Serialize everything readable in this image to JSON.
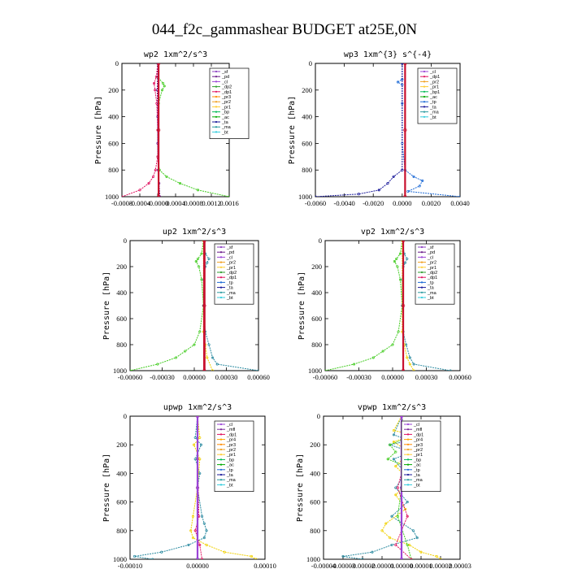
{
  "figure": {
    "title": "044_f2c_gammashear  BUDGET at25E,0N"
  },
  "colors": {
    "sf": "#8b3fc0",
    "pd": "#6a1a8a",
    "cl": "#9b44d6",
    "mfl": "#7a2a9a",
    "dp1": "#e0115f",
    "dp2": "#2e9e2e",
    "pr1": "#ffcc33",
    "pr2": "#f0a020",
    "pr3": "#ff8c00",
    "pr4": "#ffa500",
    "bp": "#00bb55",
    "ac": "#00aa00",
    "tp": "#1e6bd6",
    "ta": "#1a1a9a",
    "ma": "#2a9aa0",
    "bt": "#33ccdd",
    "red": "#c8102e",
    "green": "#44cc22",
    "teal": "#2a8aa0",
    "yellow": "#f0d000"
  },
  "chart_data": [
    {
      "type": "line",
      "title": "wp2  1xm^2/s^3",
      "ylabel": "Pressure [hPa]",
      "xlim": [
        -0.0008,
        0.0016
      ],
      "ylim": [
        1000,
        0
      ],
      "xticks": [
        "-0.0008",
        "-0.0004",
        "-0.0000",
        "0.0004",
        "0.0008",
        "0.0012",
        "0.0016"
      ],
      "yticks": [
        "0",
        "200",
        "400",
        "600",
        "800",
        "1000"
      ],
      "legend": [
        "_sf",
        "_pd",
        "_cl",
        "_dp2",
        "_dp1",
        "_pr3",
        "_pr2",
        "_pr1",
        "_bp",
        "_ac",
        "_ta",
        "_ma",
        "_bt"
      ],
      "legend_colors": [
        "sf",
        "pd",
        "cl",
        "dp2",
        "dp1",
        "pr3",
        "pr2",
        "pr1",
        "bp",
        "ac",
        "ta",
        "ma",
        "bt"
      ],
      "series": [
        {
          "color": "green",
          "p": [
            0,
            100,
            150,
            170,
            200,
            300,
            500,
            700,
            800,
            850,
            900,
            950,
            1000
          ],
          "v": [
            0,
            0,
            0.00012,
            0.00015,
            0.0001,
            2e-05,
            0,
            0,
            4e-05,
            0.0002,
            0.0005,
            0.0009,
            0.0016
          ]
        },
        {
          "color": "dp1",
          "p": [
            0,
            100,
            150,
            200,
            300,
            500,
            700,
            800,
            850,
            900,
            950,
            1000
          ],
          "v": [
            0,
            -3e-05,
            -8e-05,
            -6e-05,
            -2e-05,
            0,
            0,
            -5e-05,
            -0.0001,
            -0.0002,
            -0.0004,
            -0.0008
          ]
        },
        {
          "color": "pd",
          "p": [
            0,
            200,
            400,
            600,
            800,
            900,
            1000
          ],
          "v": [
            0,
            -1e-05,
            0,
            0,
            1e-05,
            3e-05,
            5e-05
          ]
        },
        {
          "color": "red",
          "p": [
            0,
            500,
            1000
          ],
          "v": [
            2e-05,
            2e-05,
            2e-05
          ],
          "width": 2.2
        }
      ]
    },
    {
      "type": "line",
      "title": "wp3  1xm^{3} s^{-4}",
      "ylabel": "Pressure [hPa]",
      "xlim": [
        -0.006,
        0.004
      ],
      "ylim": [
        1000,
        0
      ],
      "xticks": [
        "-0.0060",
        "-0.0040",
        "-0.0020",
        "0.0000",
        "0.0020",
        "0.0040"
      ],
      "yticks": [
        "0",
        "200",
        "400",
        "600",
        "800",
        "1000"
      ],
      "legend": [
        "_cl",
        "_dp1",
        "_pr2",
        "_pr1",
        "_bp1",
        "_ac",
        "_tp",
        "_ta",
        "_ma",
        "_bt"
      ],
      "legend_colors": [
        "cl",
        "dp1",
        "pr2",
        "pr1",
        "bp",
        "ac",
        "tp",
        "ta",
        "ma",
        "bt"
      ],
      "series": [
        {
          "color": "tp",
          "p": [
            0,
            120,
            140,
            160,
            300,
            600,
            800,
            850,
            880,
            920,
            960,
            1000
          ],
          "v": [
            0,
            0,
            -0.0003,
            0,
            0,
            0,
            0.0002,
            0.0008,
            0.0014,
            0.0012,
            0.0004,
            0.004
          ]
        },
        {
          "color": "ta",
          "p": [
            0,
            800,
            850,
            900,
            950,
            980,
            1000
          ],
          "v": [
            0,
            0,
            -0.0006,
            -0.001,
            -0.0016,
            -0.003,
            -0.006
          ]
        },
        {
          "color": "red",
          "p": [
            0,
            500,
            1000
          ],
          "v": [
            0.0002,
            0.0002,
            0.0002
          ],
          "width": 2.2
        }
      ]
    },
    {
      "type": "line",
      "title": "up2  1xm^2/s^3",
      "ylabel": "Pressure [hPa]",
      "xlim": [
        -0.0008,
        0.0006
      ],
      "ylim": [
        1000,
        0
      ],
      "xticks": [
        "-0.00060",
        "-0.00030",
        "0.00000",
        "0.00030",
        "0.00060"
      ],
      "yticks": [
        "0",
        "200",
        "400",
        "600",
        "800",
        "1000"
      ],
      "legend": [
        "_sf",
        "_pd",
        "_cl",
        "_pr2",
        "_pr1",
        "_dp2",
        "_dp1",
        "_tp",
        "_ta",
        "_ma",
        "_bt"
      ],
      "legend_colors": [
        "sf",
        "pd",
        "cl",
        "pr2",
        "pr1",
        "dp2",
        "dp1",
        "tp",
        "ta",
        "ma",
        "bt"
      ],
      "series": [
        {
          "color": "green",
          "p": [
            0,
            100,
            140,
            160,
            200,
            300,
            500,
            700,
            800,
            850,
            900,
            950,
            1000
          ],
          "v": [
            0,
            -2e-05,
            -6e-05,
            -8e-05,
            -5e-05,
            -2e-05,
            0,
            -4e-05,
            -0.0001,
            -0.0002,
            -0.0003,
            -0.0005,
            -0.0008
          ]
        },
        {
          "color": "teal",
          "p": [
            0,
            100,
            140,
            170,
            200,
            300,
            500,
            700,
            800,
            900,
            950,
            1000
          ],
          "v": [
            0,
            2e-05,
            6e-05,
            4e-05,
            2e-05,
            0,
            0,
            2e-05,
            6e-05,
            0.0001,
            0.00015,
            0.0006
          ]
        },
        {
          "color": "yellow",
          "p": [
            0,
            700,
            800,
            900,
            1000
          ],
          "v": [
            0,
            0,
            2e-05,
            4e-05,
            0.0001
          ]
        },
        {
          "color": "red",
          "p": [
            0,
            500,
            1000
          ],
          "v": [
            1e-05,
            1e-05,
            1e-05
          ],
          "width": 2.8
        }
      ]
    },
    {
      "type": "line",
      "title": "vp2  1xm^2/s^3",
      "ylabel": "Pressure [hPa]",
      "xlim": [
        -0.0008,
        0.0006
      ],
      "ylim": [
        1000,
        0
      ],
      "xticks": [
        "-0.00060",
        "-0.00030",
        "0.00000",
        "0.00030",
        "0.00060"
      ],
      "yticks": [
        "0",
        "200",
        "400",
        "600",
        "800",
        "1000"
      ],
      "legend": [
        "_sf",
        "_pd",
        "_cl",
        "_pr2",
        "_pr1",
        "_dp2",
        "_dp1",
        "_tp",
        "_ta",
        "_ma",
        "_bt"
      ],
      "legend_colors": [
        "sf",
        "pd",
        "cl",
        "pr2",
        "pr1",
        "dp2",
        "dp1",
        "tp",
        "ta",
        "ma",
        "bt"
      ],
      "series": [
        {
          "color": "green",
          "p": [
            0,
            100,
            140,
            160,
            200,
            300,
            500,
            700,
            800,
            850,
            900,
            950,
            1000
          ],
          "v": [
            0,
            -2e-05,
            -6e-05,
            -8e-05,
            -5e-05,
            -2e-05,
            0,
            -4e-05,
            -0.0001,
            -0.0002,
            -0.0003,
            -0.0005,
            -0.0008
          ]
        },
        {
          "color": "teal",
          "p": [
            0,
            100,
            140,
            170,
            200,
            300,
            500,
            700,
            800,
            900,
            950,
            1000
          ],
          "v": [
            0,
            2e-05,
            5e-05,
            3e-05,
            1e-05,
            0,
            0,
            1e-05,
            4e-05,
            8e-05,
            0.00012,
            0.0005
          ]
        },
        {
          "color": "yellow",
          "p": [
            0,
            700,
            800,
            900,
            950,
            1000
          ],
          "v": [
            0,
            0,
            2e-05,
            5e-05,
            8e-05,
            0.00012
          ]
        },
        {
          "color": "red",
          "p": [
            0,
            500,
            1000
          ],
          "v": [
            1e-05,
            1e-05,
            1e-05
          ],
          "width": 2.2
        }
      ]
    },
    {
      "type": "line",
      "title": "upwp  1xm^2/s^3",
      "ylabel": "Pressure [hPa]",
      "xlim": [
        -0.00015,
        0.00015
      ],
      "ylim": [
        1000,
        0
      ],
      "xticks": [
        "-0.00010",
        "0.00000",
        "0.00010"
      ],
      "yticks": [
        "0",
        "200",
        "400",
        "600",
        "800",
        "1000"
      ],
      "legend": [
        "_cl",
        "_mfl",
        "_dp1",
        "_pr4",
        "_pr3",
        "_pr2",
        "_pr1",
        "_bp",
        "_ac",
        "_tp",
        "_ta",
        "_ma",
        "_bt"
      ],
      "legend_colors": [
        "cl",
        "mfl",
        "dp1",
        "pr4",
        "pr3",
        "pr2",
        "pr1",
        "bp",
        "ac",
        "tp",
        "ta",
        "ma",
        "bt"
      ],
      "series": [
        {
          "color": "teal",
          "p": [
            0,
            150,
            200,
            300,
            400,
            500,
            700,
            750,
            800,
            850,
            900,
            950,
            980,
            1000
          ],
          "v": [
            0,
            -5e-06,
            8e-06,
            -5e-06,
            5e-06,
            0,
            1e-05,
            1.5e-05,
            2e-05,
            1.5e-05,
            -2e-05,
            -8e-05,
            -0.00014,
            -0.0001
          ]
        },
        {
          "color": "yellow",
          "p": [
            0,
            150,
            200,
            300,
            500,
            700,
            800,
            850,
            900,
            950,
            980,
            1000
          ],
          "v": [
            0,
            5e-06,
            -8e-06,
            5e-06,
            0,
            -1e-05,
            -1.5e-05,
            -1e-05,
            2e-05,
            6e-05,
            0.00012,
            0.00013
          ]
        },
        {
          "color": "dp1",
          "p": [
            0,
            300,
            700,
            800,
            900,
            1000
          ],
          "v": [
            0,
            0,
            3e-06,
            -5e-06,
            5e-06,
            1e-05
          ]
        },
        {
          "color": "cl",
          "p": [
            0,
            500,
            1000
          ],
          "v": [
            0,
            0,
            0
          ],
          "width": 2.2
        }
      ]
    },
    {
      "type": "line",
      "title": "vpwp  1xm^2/s^3",
      "ylabel": "Pressure [hPa]",
      "xlim": [
        -4e-05,
        3e-05
      ],
      "ylim": [
        1000,
        0
      ],
      "xticks": [
        "-0.00004",
        "-0.00003",
        "-0.00002",
        "-0.00001",
        "0.00000",
        "0.00001",
        "0.00002",
        "0.00003"
      ],
      "yticks": [
        "0",
        "200",
        "400",
        "600",
        "800",
        "1000"
      ],
      "legend": [
        "_cl",
        "_mfl",
        "_dp1",
        "_pr4",
        "_pr3",
        "_pr2",
        "_pr1",
        "_bp",
        "_ac",
        "_tp",
        "_ta",
        "_ma",
        "_bt"
      ],
      "legend_colors": [
        "cl",
        "mfl",
        "dp1",
        "pr4",
        "pr3",
        "pr2",
        "pr1",
        "bp",
        "ac",
        "tp",
        "ta",
        "ma",
        "bt"
      ],
      "series": [
        {
          "color": "teal",
          "p": [
            0,
            130,
            170,
            200,
            250,
            300,
            400,
            500,
            600,
            700,
            800,
            850,
            900,
            950,
            980,
            1000
          ],
          "v": [
            0,
            -4e-06,
            4e-06,
            -6e-06,
            5e-06,
            -4e-06,
            2e-06,
            -3e-06,
            3e-06,
            -5e-06,
            6e-06,
            8e-06,
            -5e-06,
            -1.5e-05,
            -3e-05,
            -2e-05
          ]
        },
        {
          "color": "yellow",
          "p": [
            0,
            100,
            130,
            180,
            250,
            350,
            450,
            550,
            650,
            750,
            800,
            850,
            900,
            950,
            980,
            1000
          ],
          "v": [
            0,
            -4e-06,
            6e-06,
            -4e-06,
            4e-06,
            -3e-06,
            4e-06,
            -3e-06,
            2e-06,
            -8e-06,
            -1e-05,
            -6e-06,
            4e-06,
            1e-05,
            1.8e-05,
            2e-05
          ]
        },
        {
          "color": "green",
          "p": [
            0,
            150,
            200,
            250,
            300,
            350,
            500,
            700,
            900,
            1000
          ],
          "v": [
            0,
            3e-06,
            -6e-06,
            -3e-06,
            -7e-06,
            2e-06,
            0,
            -2e-06,
            3e-06,
            5e-06
          ]
        },
        {
          "color": "dp1",
          "p": [
            0,
            300,
            500,
            700,
            900,
            1000
          ],
          "v": [
            0,
            2e-06,
            -2e-06,
            3e-06,
            -3e-06,
            5e-06
          ]
        },
        {
          "color": "cl",
          "p": [
            0,
            500,
            1000
          ],
          "v": [
            0,
            0,
            0
          ],
          "width": 2.2
        }
      ]
    }
  ]
}
